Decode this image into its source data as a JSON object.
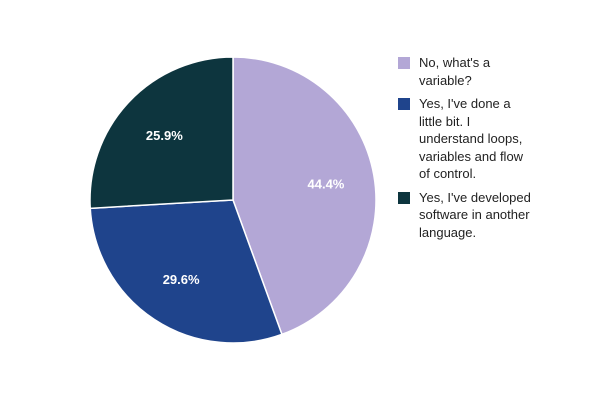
{
  "chart_data": {
    "type": "pie",
    "title": "",
    "legend_position": "right",
    "series": [
      {
        "name": "No, what's a\nvariable?",
        "value": 44.4,
        "label": "44.4%",
        "color": "#b3a7d6"
      },
      {
        "name": "Yes, I've done a\nlittle bit. I\nunderstand loops,\nvariables and flow\nof control.",
        "value": 29.6,
        "label": "29.6%",
        "color": "#1f448c"
      },
      {
        "name": "Yes, I've developed\nsoftware in another\nlanguage.",
        "value": 25.9,
        "label": "25.9%",
        "color": "#0d353e"
      }
    ]
  }
}
